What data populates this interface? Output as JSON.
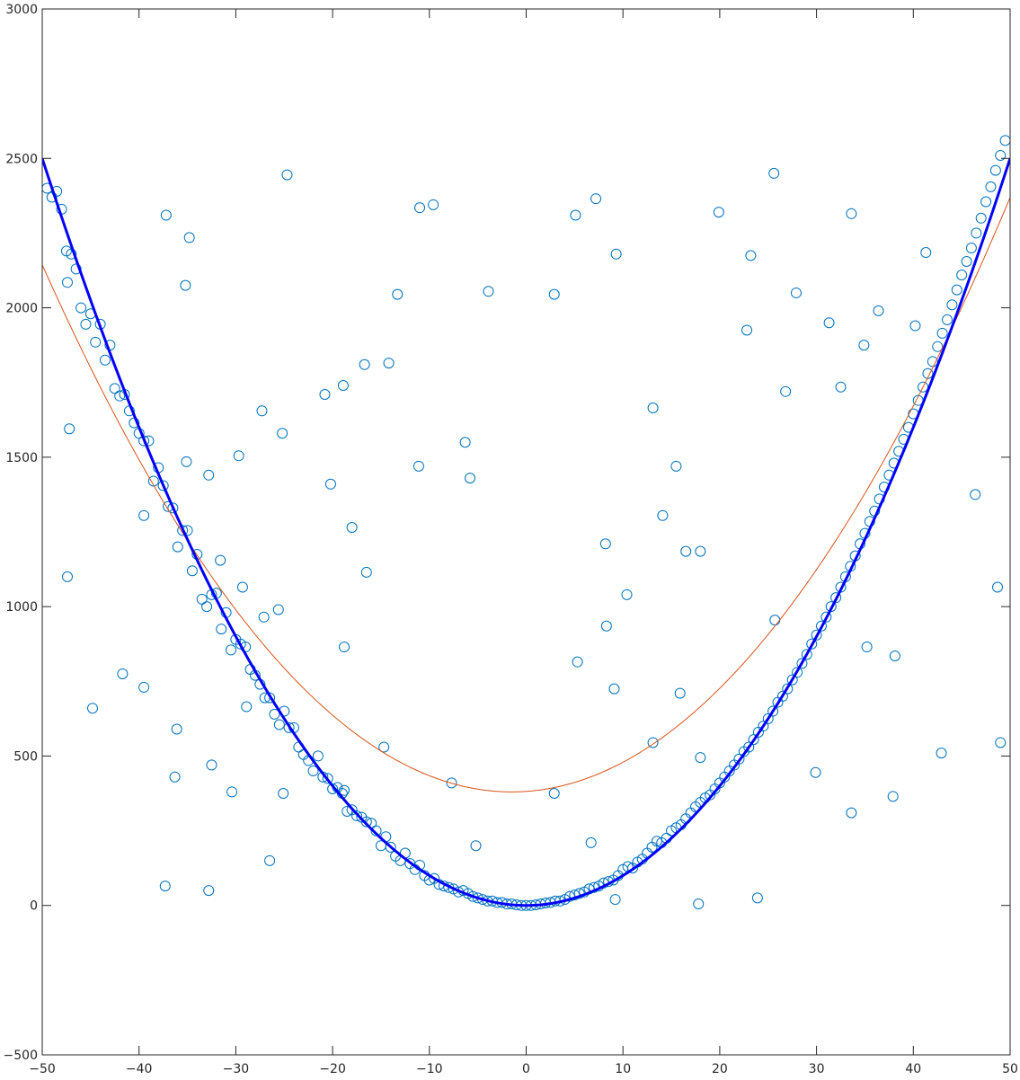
{
  "chart_data": {
    "type": "scatter",
    "title": "",
    "xlabel": "",
    "ylabel": "",
    "xlim": [
      -50,
      50
    ],
    "ylim": [
      -500,
      3000
    ],
    "grid": false,
    "x_ticks": [
      -50,
      -40,
      -30,
      -20,
      -10,
      0,
      10,
      20,
      30,
      40,
      50
    ],
    "y_ticks": [
      -500,
      0,
      500,
      1000,
      1500,
      2000,
      2500,
      3000
    ],
    "x_tick_labels": [
      "−50",
      "−40",
      "−30",
      "−20",
      "−10",
      "0",
      "10",
      "20",
      "30",
      "40",
      "50"
    ],
    "y_tick_labels": [
      "−500",
      "0",
      "500",
      "1000",
      "1500",
      "2000",
      "2500",
      "3000"
    ],
    "colors": {
      "points": "#0072bd",
      "fit_red": "#d95319",
      "fit_blue": "#0000ff"
    },
    "series": [
      {
        "kind": "scatter",
        "marker": "open-circle",
        "points": [
          [
            -49.5,
            2400
          ],
          [
            -49,
            2370
          ],
          [
            -48.5,
            2390
          ],
          [
            -48,
            2330
          ],
          [
            -47.5,
            2190
          ],
          [
            -47,
            2180
          ],
          [
            -46.5,
            2130
          ],
          [
            -46,
            2000
          ],
          [
            -45.5,
            1945
          ],
          [
            -45,
            1980
          ],
          [
            -44.5,
            1885
          ],
          [
            -44,
            1945
          ],
          [
            -43.5,
            1825
          ],
          [
            -43,
            1875
          ],
          [
            -42.5,
            1730
          ],
          [
            -42,
            1705
          ],
          [
            -41.5,
            1710
          ],
          [
            -41,
            1655
          ],
          [
            -40.5,
            1615
          ],
          [
            -40,
            1580
          ],
          [
            -39.5,
            1555
          ],
          [
            -39,
            1555
          ],
          [
            -38.5,
            1420
          ],
          [
            -38,
            1465
          ],
          [
            -37.5,
            1405
          ],
          [
            -37,
            1335
          ],
          [
            -36.5,
            1330
          ],
          [
            -36,
            1200
          ],
          [
            -35.5,
            1255
          ],
          [
            -35,
            1255
          ],
          [
            -34.5,
            1120
          ],
          [
            -34,
            1175
          ],
          [
            -33.5,
            1025
          ],
          [
            -33,
            1000
          ],
          [
            -32.5,
            1040
          ],
          [
            -32,
            1045
          ],
          [
            -31.5,
            925
          ],
          [
            -31,
            980
          ],
          [
            -30.5,
            855
          ],
          [
            -30,
            890
          ],
          [
            -29.5,
            875
          ],
          [
            -29,
            865
          ],
          [
            -28.5,
            790
          ],
          [
            -28,
            770
          ],
          [
            -27.5,
            740
          ],
          [
            -27,
            695
          ],
          [
            -26.5,
            695
          ],
          [
            -26,
            640
          ],
          [
            -25.5,
            605
          ],
          [
            -25,
            650
          ],
          [
            -24.5,
            595
          ],
          [
            -24,
            595
          ],
          [
            -23.5,
            530
          ],
          [
            -23,
            505
          ],
          [
            -22.5,
            485
          ],
          [
            -22,
            450
          ],
          [
            -21.5,
            500
          ],
          [
            -21,
            430
          ],
          [
            -20.5,
            425
          ],
          [
            -20,
            390
          ],
          [
            -19.5,
            395
          ],
          [
            -19,
            375
          ],
          [
            -18.5,
            315
          ],
          [
            -18,
            320
          ],
          [
            -17.5,
            300
          ],
          [
            -17,
            295
          ],
          [
            -16.5,
            280
          ],
          [
            -16,
            275
          ],
          [
            -15.5,
            250
          ],
          [
            -15,
            200
          ],
          [
            -14.5,
            230
          ],
          [
            -14,
            195
          ],
          [
            -13.5,
            165
          ],
          [
            -13,
            150
          ],
          [
            -12.5,
            175
          ],
          [
            -12,
            140
          ],
          [
            -11.5,
            120
          ],
          [
            -11,
            135
          ],
          [
            -10.5,
            100
          ],
          [
            -10,
            85
          ],
          [
            -9.5,
            90
          ],
          [
            -9,
            70
          ],
          [
            -8.5,
            65
          ],
          [
            -8,
            60
          ],
          [
            -7.5,
            55
          ],
          [
            -7,
            45
          ],
          [
            -6.5,
            50
          ],
          [
            -6,
            40
          ],
          [
            -5.5,
            30
          ],
          [
            -5,
            25
          ],
          [
            -4.5,
            20
          ],
          [
            -4,
            15
          ],
          [
            -3.5,
            15
          ],
          [
            -3,
            10
          ],
          [
            -2.5,
            10
          ],
          [
            -2,
            5
          ],
          [
            -1.5,
            5
          ],
          [
            -1,
            2
          ],
          [
            -0.5,
            0
          ],
          [
            0,
            0
          ],
          [
            0.5,
            0
          ],
          [
            1,
            2
          ],
          [
            1.5,
            5
          ],
          [
            2,
            8
          ],
          [
            2.5,
            10
          ],
          [
            3,
            15
          ],
          [
            3.5,
            15
          ],
          [
            4,
            20
          ],
          [
            4.5,
            30
          ],
          [
            5,
            35
          ],
          [
            5.5,
            40
          ],
          [
            6,
            45
          ],
          [
            6.5,
            55
          ],
          [
            7,
            60
          ],
          [
            7.5,
            65
          ],
          [
            8,
            75
          ],
          [
            8.5,
            80
          ],
          [
            9,
            85
          ],
          [
            9.5,
            100
          ],
          [
            10,
            120
          ],
          [
            10.5,
            130
          ],
          [
            11,
            125
          ],
          [
            11.5,
            145
          ],
          [
            12,
            155
          ],
          [
            12.5,
            175
          ],
          [
            13,
            195
          ],
          [
            13.5,
            215
          ],
          [
            14,
            210
          ],
          [
            14.5,
            225
          ],
          [
            15,
            250
          ],
          [
            15.5,
            260
          ],
          [
            16,
            270
          ],
          [
            16.5,
            290
          ],
          [
            17,
            310
          ],
          [
            17.5,
            330
          ],
          [
            18,
            345
          ],
          [
            18.5,
            360
          ],
          [
            19,
            370
          ],
          [
            19.5,
            390
          ],
          [
            20,
            410
          ],
          [
            20.5,
            430
          ],
          [
            21,
            450
          ],
          [
            21.5,
            470
          ],
          [
            22,
            490
          ],
          [
            22.5,
            515
          ],
          [
            23,
            530
          ],
          [
            23.5,
            555
          ],
          [
            24,
            580
          ],
          [
            24.5,
            600
          ],
          [
            25,
            625
          ],
          [
            25.5,
            650
          ],
          [
            26,
            680
          ],
          [
            26.5,
            700
          ],
          [
            27,
            725
          ],
          [
            27.5,
            755
          ],
          [
            28,
            780
          ],
          [
            28.5,
            810
          ],
          [
            29,
            840
          ],
          [
            29.5,
            875
          ],
          [
            30,
            905
          ],
          [
            30.5,
            935
          ],
          [
            31,
            965
          ],
          [
            31.5,
            1000
          ],
          [
            32,
            1030
          ],
          [
            32.5,
            1065
          ],
          [
            33,
            1100
          ],
          [
            33.5,
            1135
          ],
          [
            34,
            1170
          ],
          [
            34.5,
            1210
          ],
          [
            35,
            1245
          ],
          [
            35.5,
            1285
          ],
          [
            36,
            1320
          ],
          [
            36.5,
            1360
          ],
          [
            37,
            1400
          ],
          [
            37.5,
            1440
          ],
          [
            38,
            1480
          ],
          [
            38.5,
            1520
          ],
          [
            39,
            1560
          ],
          [
            39.5,
            1600
          ],
          [
            40,
            1645
          ],
          [
            40.5,
            1690
          ],
          [
            41,
            1735
          ],
          [
            41.5,
            1780
          ],
          [
            42,
            1820
          ],
          [
            42.5,
            1870
          ],
          [
            43,
            1915
          ],
          [
            43.5,
            1960
          ],
          [
            44,
            2010
          ],
          [
            44.5,
            2060
          ],
          [
            45,
            2110
          ],
          [
            45.5,
            2155
          ],
          [
            46,
            2200
          ],
          [
            46.5,
            2250
          ],
          [
            47,
            2300
          ],
          [
            47.5,
            2355
          ],
          [
            48,
            2405
          ],
          [
            48.5,
            2460
          ],
          [
            49,
            2510
          ],
          [
            49.5,
            2560
          ],
          [
            -47.4,
            2085
          ],
          [
            -47.2,
            1595
          ],
          [
            -47.4,
            1100
          ],
          [
            -44.8,
            660
          ],
          [
            -41.7,
            775
          ],
          [
            -39.5,
            1305
          ],
          [
            -39.5,
            730
          ],
          [
            -37.2,
            2310
          ],
          [
            -37.3,
            65
          ],
          [
            -36.3,
            430
          ],
          [
            -36.1,
            590
          ],
          [
            -35.2,
            2075
          ],
          [
            -34.8,
            2235
          ],
          [
            -35.1,
            1485
          ],
          [
            -32.8,
            1440
          ],
          [
            -32.5,
            470
          ],
          [
            -32.8,
            50
          ],
          [
            -31.6,
            1155
          ],
          [
            -30.4,
            380
          ],
          [
            -29.7,
            1505
          ],
          [
            -29.3,
            1065
          ],
          [
            -28.9,
            665
          ],
          [
            -27.3,
            1655
          ],
          [
            -27.1,
            965
          ],
          [
            -26.5,
            150
          ],
          [
            -25.6,
            990
          ],
          [
            -25.2,
            1580
          ],
          [
            -25.1,
            375
          ],
          [
            -24.7,
            2445
          ],
          [
            -20.8,
            1710
          ],
          [
            -20.2,
            1410
          ],
          [
            -18.9,
            1740
          ],
          [
            -18.8,
            865
          ],
          [
            -18.8,
            385
          ],
          [
            -18,
            1265
          ],
          [
            -16.7,
            1810
          ],
          [
            -16.5,
            1115
          ],
          [
            -14.7,
            530
          ],
          [
            -14.2,
            1815
          ],
          [
            -13.3,
            2045
          ],
          [
            -11,
            2335
          ],
          [
            -11.1,
            1470
          ],
          [
            -9.6,
            2345
          ],
          [
            -7.7,
            410
          ],
          [
            -6.3,
            1550
          ],
          [
            -5.8,
            1430
          ],
          [
            -5.2,
            200
          ],
          [
            -3.9,
            2055
          ],
          [
            2.9,
            2045
          ],
          [
            2.9,
            375
          ],
          [
            5.1,
            2310
          ],
          [
            5.3,
            815
          ],
          [
            6.7,
            210
          ],
          [
            7.2,
            2365
          ],
          [
            8.2,
            1210
          ],
          [
            8.3,
            935
          ],
          [
            9.1,
            725
          ],
          [
            9.3,
            2180
          ],
          [
            9.2,
            20
          ],
          [
            10.4,
            1040
          ],
          [
            13.1,
            1665
          ],
          [
            13.1,
            545
          ],
          [
            14.1,
            1305
          ],
          [
            15.5,
            1470
          ],
          [
            15.9,
            710
          ],
          [
            16.5,
            1185
          ],
          [
            17.8,
            5
          ],
          [
            18,
            1185
          ],
          [
            18,
            495
          ],
          [
            19.9,
            2320
          ],
          [
            22.8,
            1925
          ],
          [
            23.2,
            2175
          ],
          [
            23.9,
            25
          ],
          [
            25.6,
            2450
          ],
          [
            25.7,
            955
          ],
          [
            26.8,
            1720
          ],
          [
            27.9,
            2050
          ],
          [
            29.9,
            445
          ],
          [
            31.3,
            1950
          ],
          [
            32.5,
            1735
          ],
          [
            33.6,
            2315
          ],
          [
            33.6,
            310
          ],
          [
            34.9,
            1875
          ],
          [
            35.2,
            865
          ],
          [
            36.4,
            1990
          ],
          [
            38.1,
            835
          ],
          [
            37.9,
            365
          ],
          [
            40.2,
            1940
          ],
          [
            41.3,
            2185
          ],
          [
            42.9,
            510
          ],
          [
            46.4,
            1375
          ],
          [
            48.7,
            1065
          ],
          [
            49,
            545
          ]
        ]
      },
      {
        "kind": "line",
        "equation": "y = 0.75*(x+1.5)^2 + 380",
        "color": "#d95319"
      },
      {
        "kind": "line",
        "equation": "y = x^2",
        "color": "#0000ff"
      }
    ]
  }
}
